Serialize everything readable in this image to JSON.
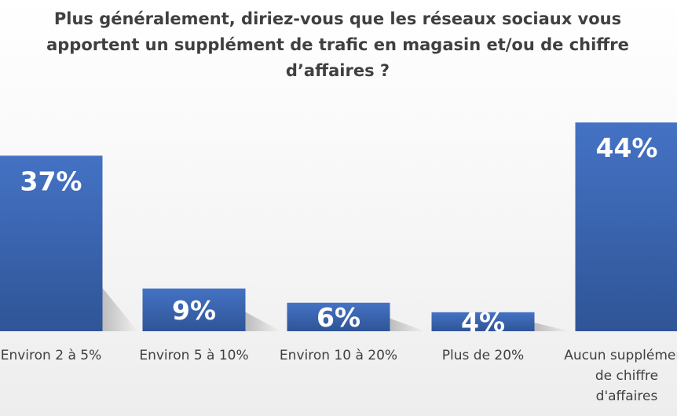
{
  "chart_data": {
    "type": "bar",
    "title": "Plus généralement, diriez-vous que les réseaux sociaux vous apportent un supplément de trafic en magasin et/ou de chiffre d’affaires ?",
    "title_lines": [
      "Plus généralement, diriez-vous que les réseaux sociaux vous",
      "apportent un supplément de trafic en magasin et/ou de chiffre",
      "d’affaires ?"
    ],
    "categories": [
      "Environ 2 à 5%",
      "Environ 5 à 10%",
      "Environ 10 à 20%",
      "Plus de 20%",
      "Aucun supplément de chiffre d'affaires"
    ],
    "category_lines": [
      [
        "Environ 2 à 5%"
      ],
      [
        "Environ 5 à 10%"
      ],
      [
        "Environ 10 à 20%"
      ],
      [
        "Plus de 20%"
      ],
      [
        "Aucun supplément",
        "de chiffre",
        "d'affaires"
      ]
    ],
    "values": [
      37,
      9,
      6,
      4,
      44
    ],
    "data_labels": [
      "37%",
      "9%",
      "6%",
      "4%",
      "44%"
    ],
    "unit": "%",
    "ylim": [
      0,
      44
    ],
    "grid": false,
    "legend": "none",
    "colors": {
      "bar": "#4472c4",
      "bar_dark": "#2f5597",
      "text": "#404040",
      "label": "#ffffff"
    }
  }
}
